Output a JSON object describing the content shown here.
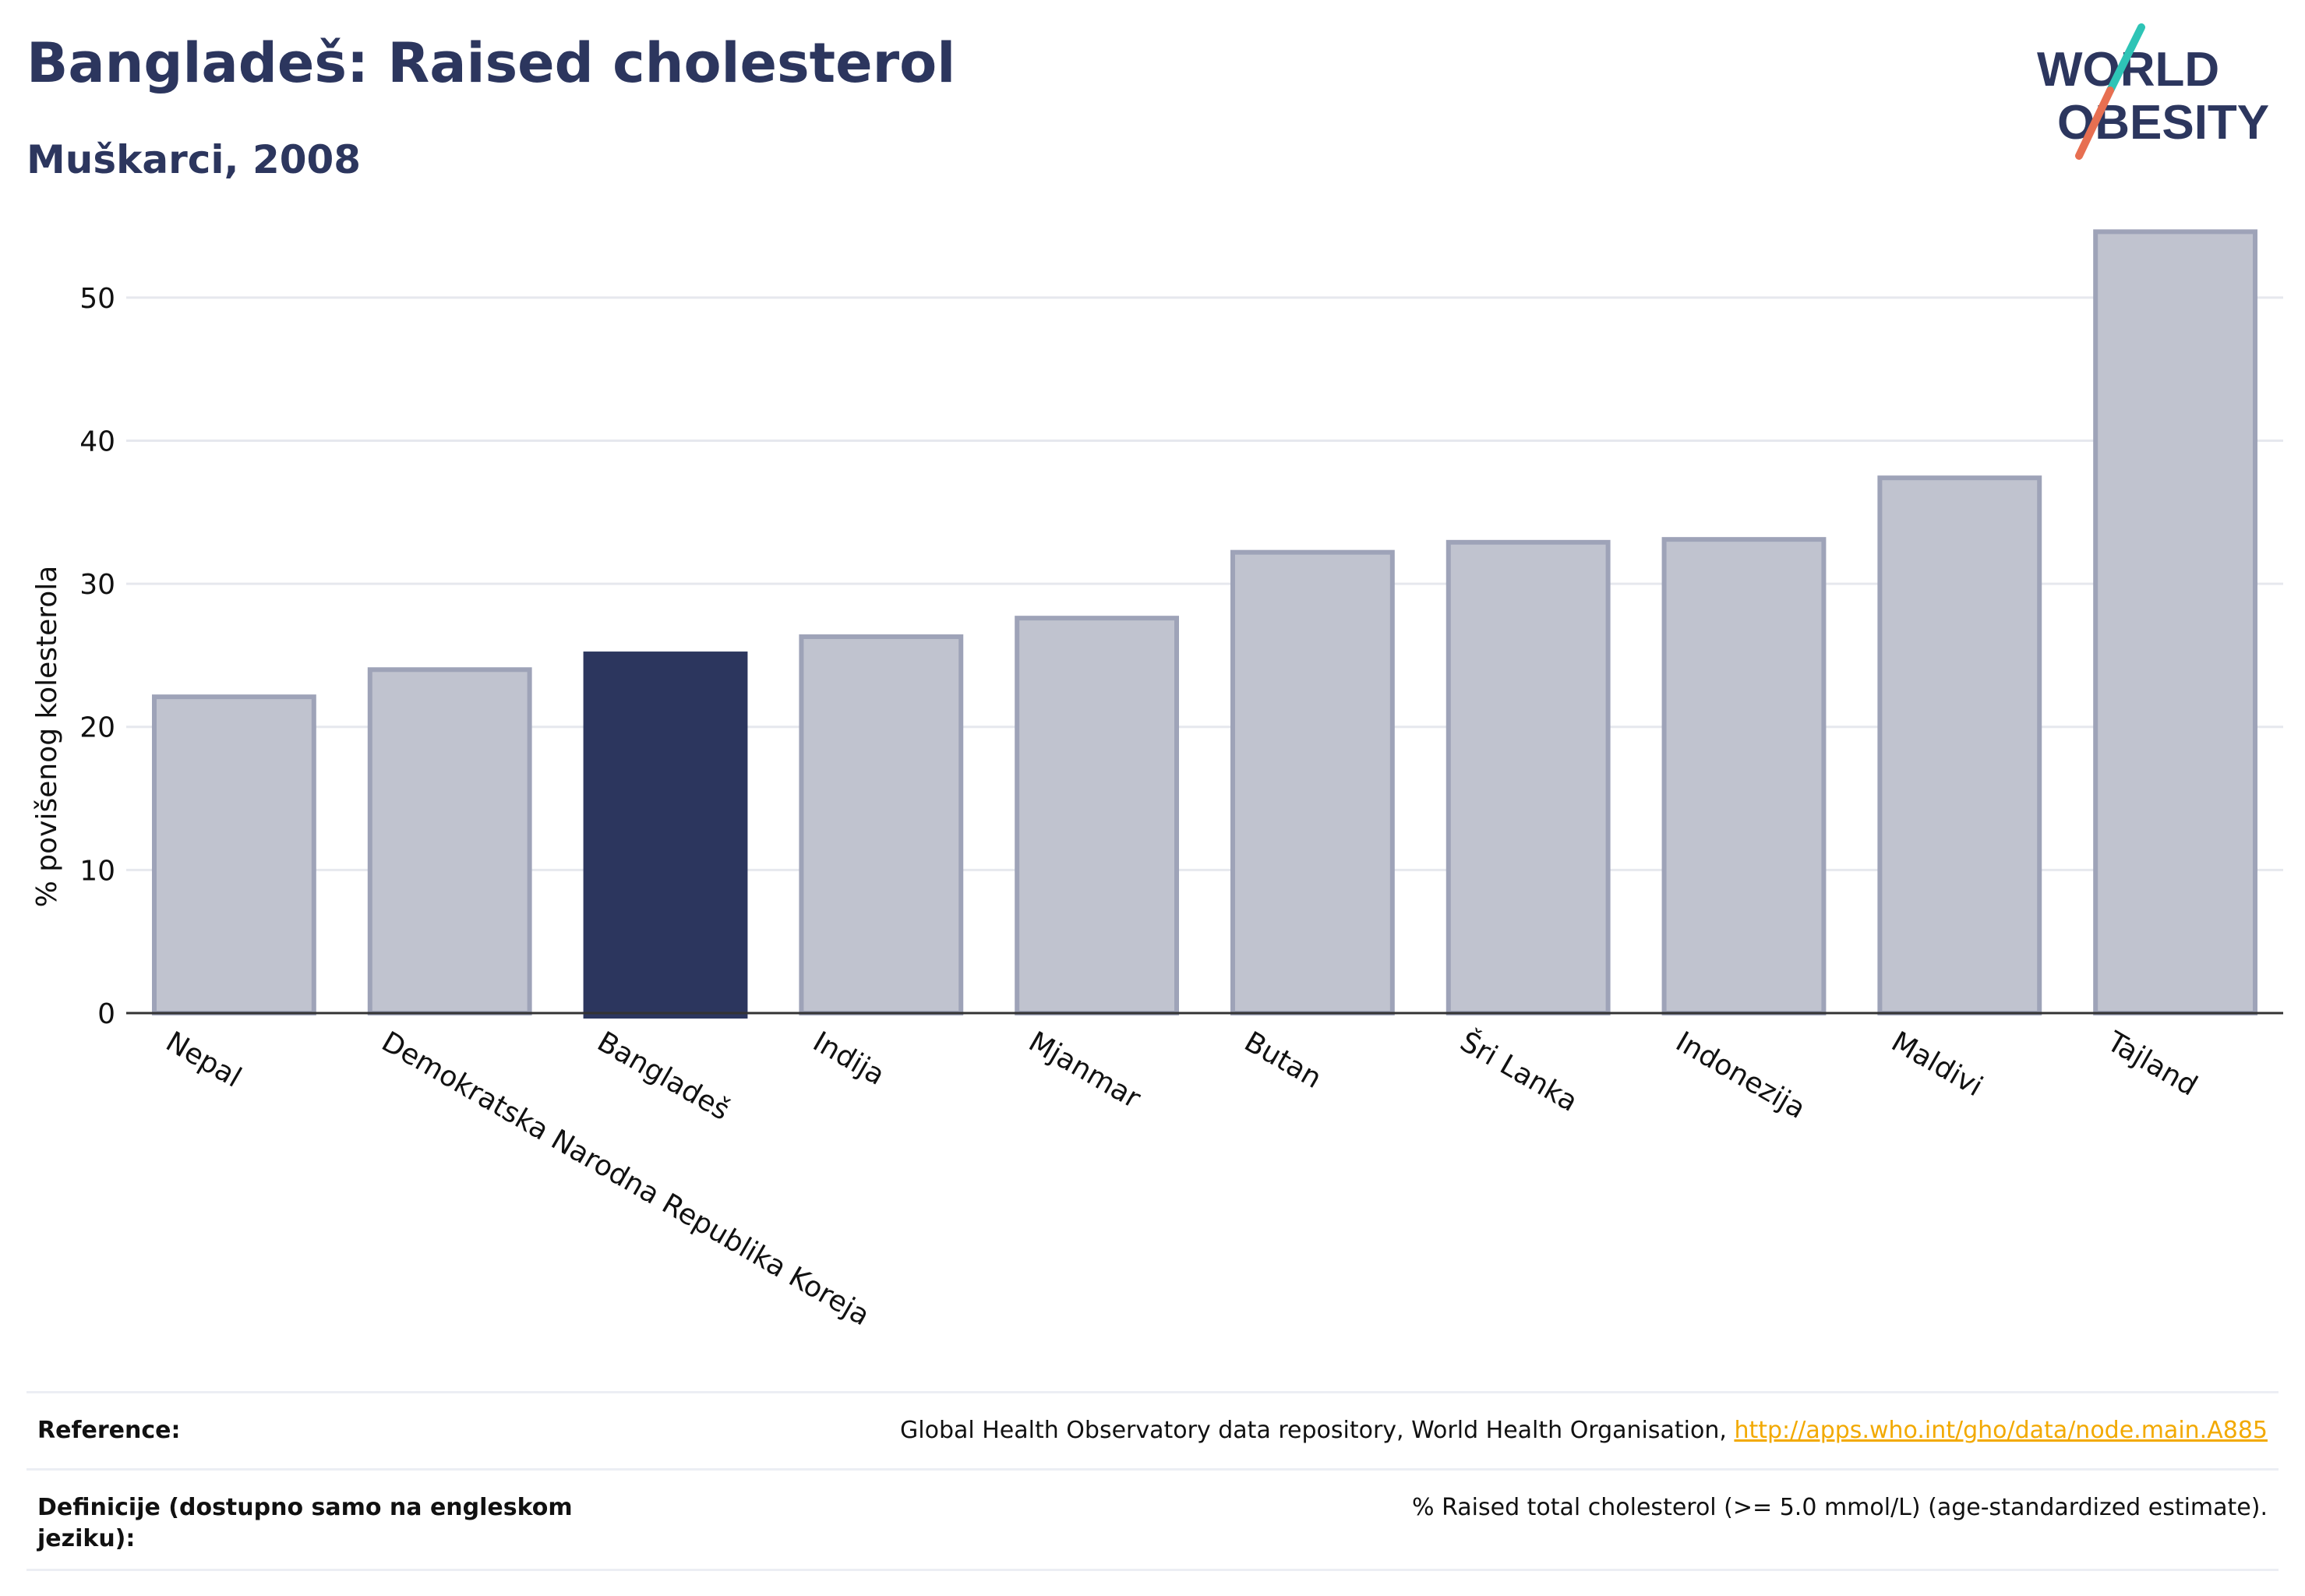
{
  "header": {
    "title": "Bangladeš: Raised cholesterol",
    "subtitle": "Muškarci, 2008"
  },
  "logo": {
    "line1": "WORLD",
    "line2": "OBESITY"
  },
  "colors": {
    "highlight": "#2c365e",
    "bar_fill": "#c0c3cf",
    "bar_stroke": "#9ea3b8",
    "link": "#f2a900",
    "logo_teal": "#2ec4b6",
    "logo_coral": "#e76f51"
  },
  "chart_data": {
    "type": "bar",
    "ylabel": "% povišenog kolesterola",
    "ylim": [
      0,
      55
    ],
    "yticks": [
      0,
      10,
      20,
      30,
      40,
      50
    ],
    "grid": true,
    "categories": [
      "Nepal",
      "Demokratska Narodna Republika Koreja",
      "Bangladeš",
      "Indija",
      "Mjanmar",
      "Butan",
      "Šri Lanka",
      "Indonezija",
      "Maldivi",
      "Tajland"
    ],
    "values": [
      22.1,
      24.0,
      25.1,
      26.3,
      27.6,
      32.2,
      32.9,
      33.1,
      37.4,
      54.6
    ],
    "highlight": "Bangladeš"
  },
  "references": [
    {
      "label": "Reference:",
      "text": "Global Health Observatory data repository, World Health Organisation, ",
      "link": "http://apps.who.int/gho/data/node.main.A885"
    },
    {
      "label": "Definicije (dostupno samo na engleskom jeziku):",
      "text": "% Raised total cholesterol (>= 5.0 mmol/L) (age-standardized estimate).",
      "link": ""
    }
  ]
}
